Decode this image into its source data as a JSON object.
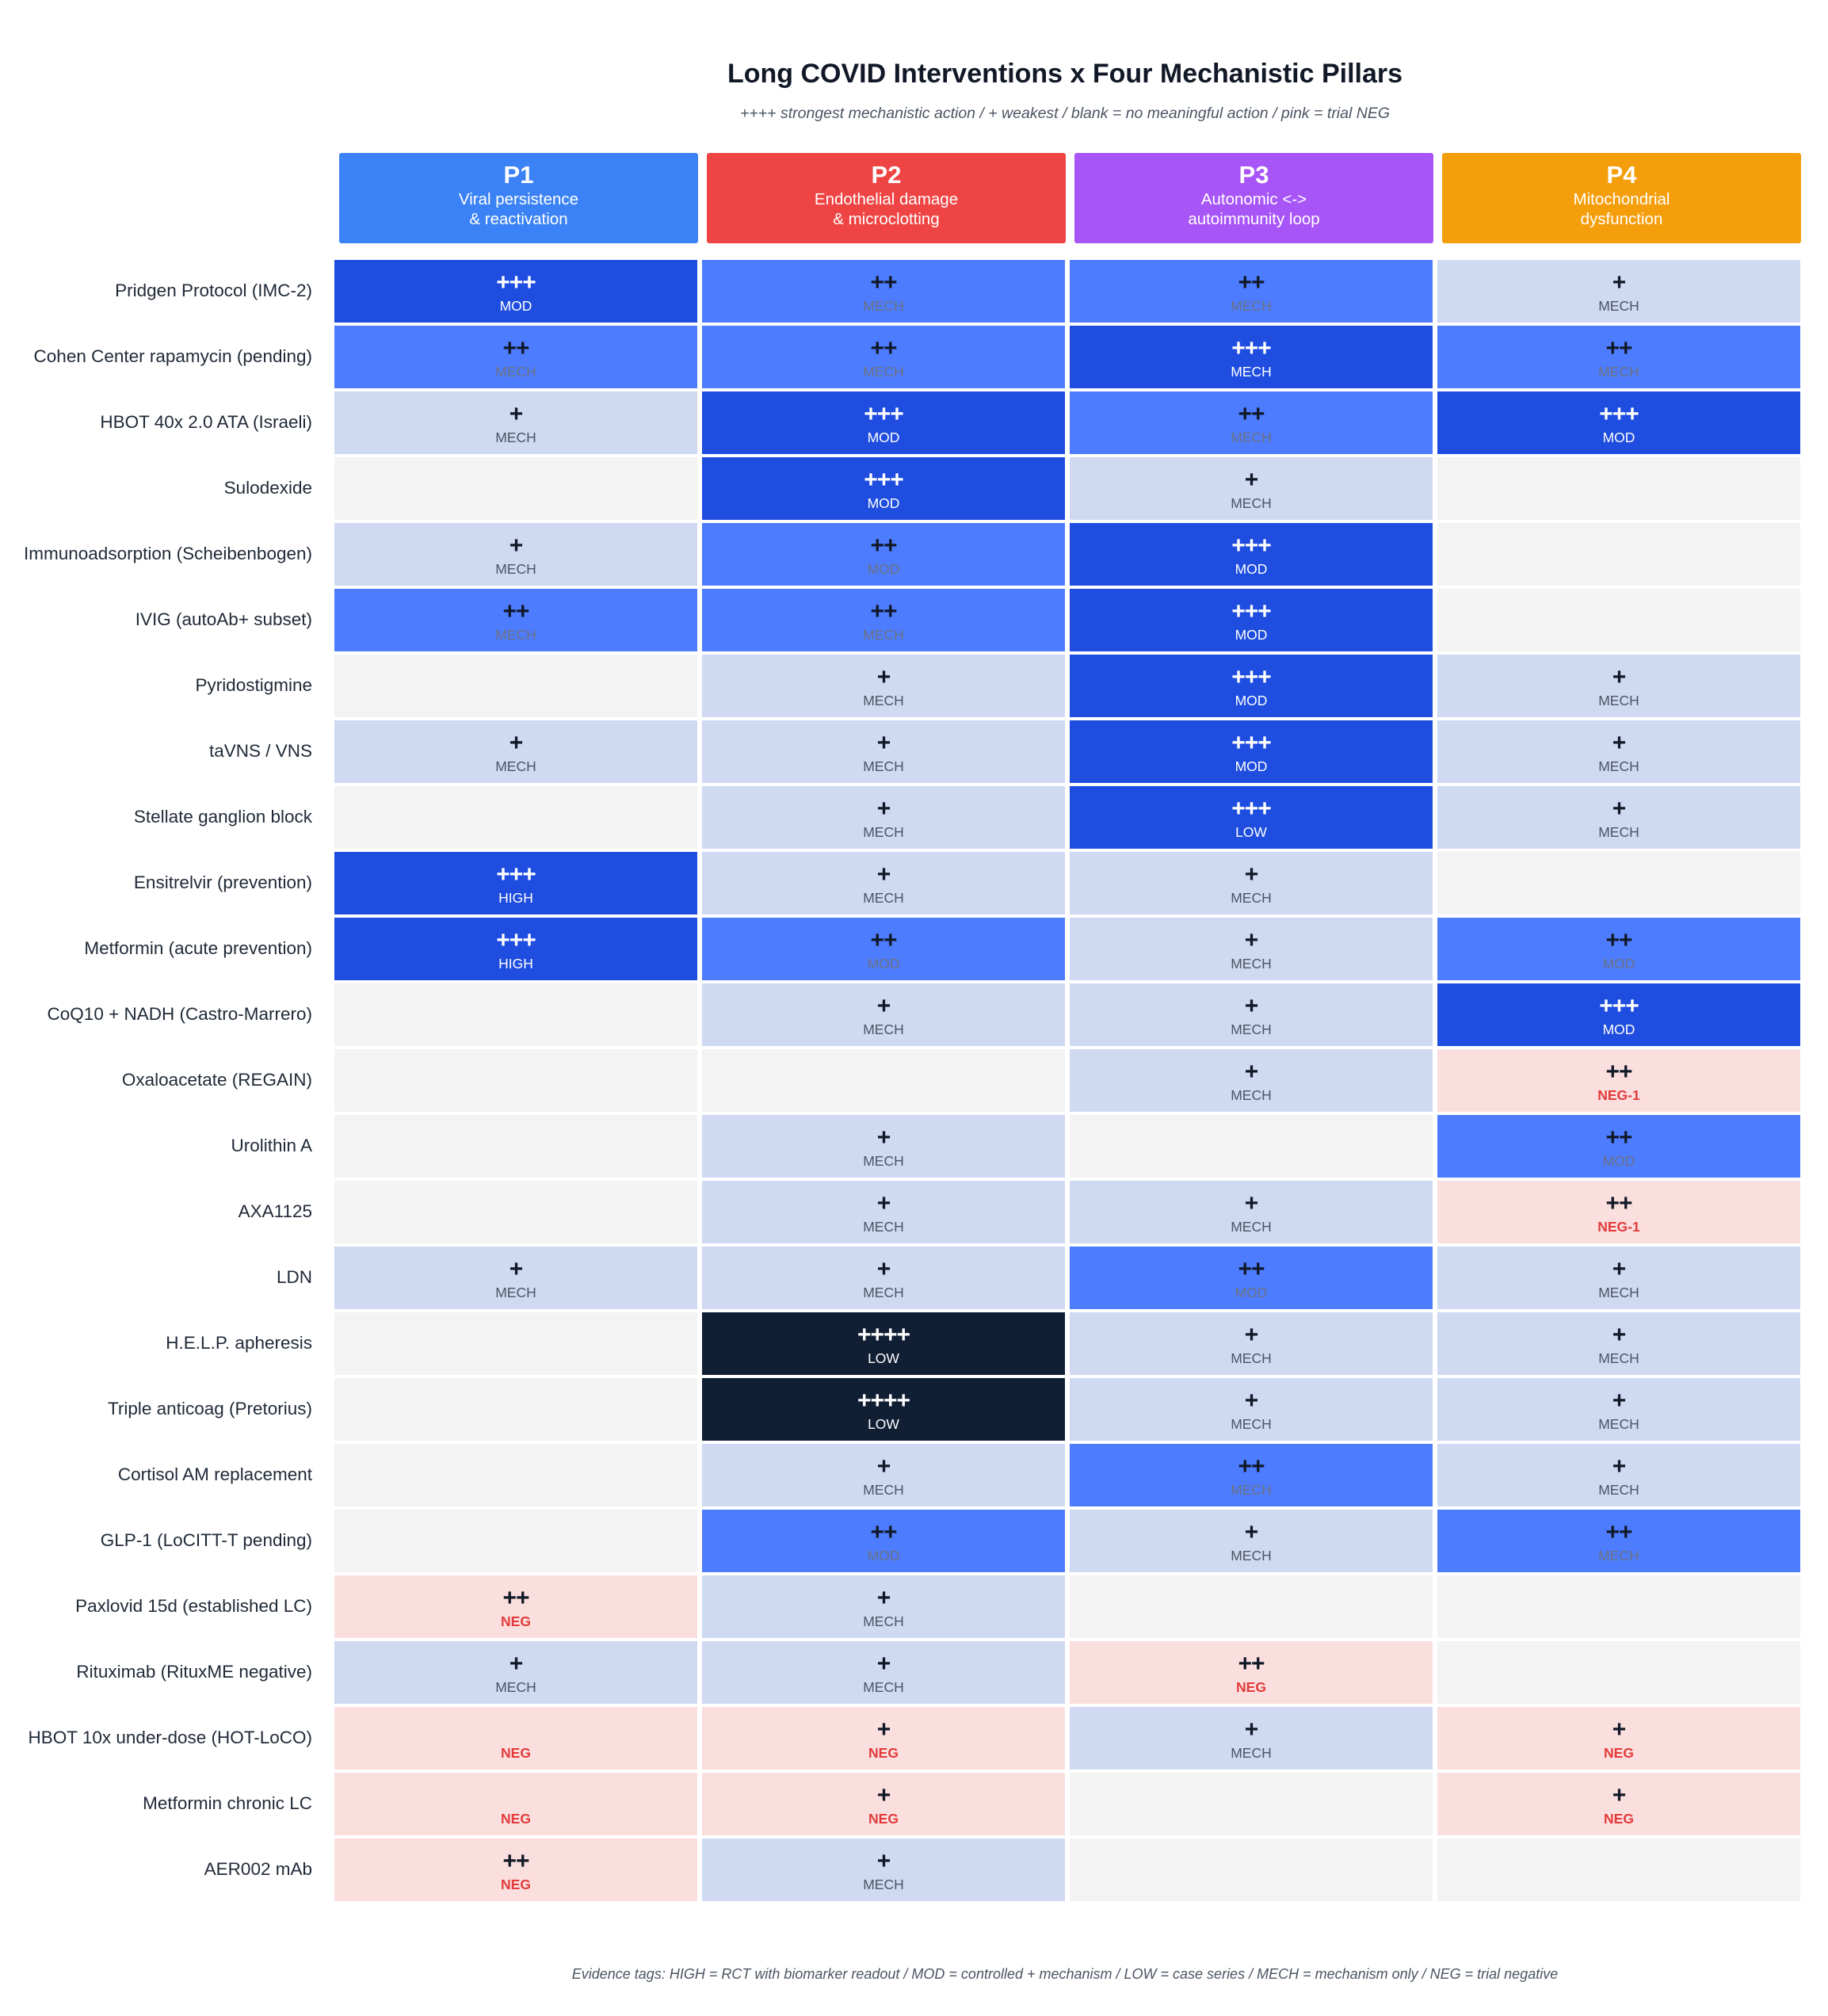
{
  "title": "Long COVID Interventions x Four Mechanistic Pillars",
  "subtitle": "++++ strongest mechanistic action   /   + weakest   /   blank = no meaningful action   /   pink = trial NEG",
  "footer": "Evidence tags:  HIGH = RCT with biomarker readout   /   MOD = controlled + mechanism   /   LOW = case series   /   MECH = mechanism only   /   NEG = trial negative",
  "colors": {
    "p1": "#3b82f6",
    "p2": "#ef4444",
    "p3": "#a855f7",
    "p4": "#f59e0b",
    "level_4": "#111f35",
    "level_3": "#1e4de0",
    "level_2": "#4d7cff",
    "level_1": "#cfd9f2",
    "blank": "#f3f3f3",
    "neg": "#fbdfdf",
    "neg_text": "#e23b3b"
  },
  "chart_data": {
    "type": "table",
    "title": "Long COVID Interventions x Four Mechanistic Pillars",
    "columns": [
      {
        "id": "P1",
        "label": "Viral persistence\n& reactivation"
      },
      {
        "id": "P2",
        "label": "Endothelial damage\n& microclotting"
      },
      {
        "id": "P3",
        "label": "Autonomic <->\nautoimmunity loop"
      },
      {
        "id": "P4",
        "label": "Mitochondrial\ndysfunction"
      }
    ],
    "rows": [
      {
        "name": "Pridgen Protocol (IMC-2)",
        "cells": [
          {
            "s": "+++",
            "t": "MOD"
          },
          {
            "s": "++",
            "t": "MECH"
          },
          {
            "s": "++",
            "t": "MECH"
          },
          {
            "s": "+",
            "t": "MECH"
          }
        ]
      },
      {
        "name": "Cohen Center rapamycin (pending)",
        "cells": [
          {
            "s": "++",
            "t": "MECH"
          },
          {
            "s": "++",
            "t": "MECH"
          },
          {
            "s": "+++",
            "t": "MECH"
          },
          {
            "s": "++",
            "t": "MECH"
          }
        ]
      },
      {
        "name": "HBOT 40x 2.0 ATA (Israeli)",
        "cells": [
          {
            "s": "+",
            "t": "MECH"
          },
          {
            "s": "+++",
            "t": "MOD"
          },
          {
            "s": "++",
            "t": "MECH"
          },
          {
            "s": "+++",
            "t": "MOD"
          }
        ]
      },
      {
        "name": "Sulodexide",
        "cells": [
          null,
          {
            "s": "+++",
            "t": "MOD"
          },
          {
            "s": "+",
            "t": "MECH"
          },
          null
        ]
      },
      {
        "name": "Immunoadsorption (Scheibenbogen)",
        "cells": [
          {
            "s": "+",
            "t": "MECH"
          },
          {
            "s": "++",
            "t": "MOD"
          },
          {
            "s": "+++",
            "t": "MOD"
          },
          null
        ]
      },
      {
        "name": "IVIG (autoAb+ subset)",
        "cells": [
          {
            "s": "++",
            "t": "MECH"
          },
          {
            "s": "++",
            "t": "MECH"
          },
          {
            "s": "+++",
            "t": "MOD"
          },
          null
        ]
      },
      {
        "name": "Pyridostigmine",
        "cells": [
          null,
          {
            "s": "+",
            "t": "MECH"
          },
          {
            "s": "+++",
            "t": "MOD"
          },
          {
            "s": "+",
            "t": "MECH"
          }
        ]
      },
      {
        "name": "taVNS / VNS",
        "cells": [
          {
            "s": "+",
            "t": "MECH"
          },
          {
            "s": "+",
            "t": "MECH"
          },
          {
            "s": "+++",
            "t": "MOD"
          },
          {
            "s": "+",
            "t": "MECH"
          }
        ]
      },
      {
        "name": "Stellate ganglion block",
        "cells": [
          null,
          {
            "s": "+",
            "t": "MECH"
          },
          {
            "s": "+++",
            "t": "LOW"
          },
          {
            "s": "+",
            "t": "MECH"
          }
        ]
      },
      {
        "name": "Ensitrelvir (prevention)",
        "cells": [
          {
            "s": "+++",
            "t": "HIGH"
          },
          {
            "s": "+",
            "t": "MECH"
          },
          {
            "s": "+",
            "t": "MECH"
          },
          null
        ]
      },
      {
        "name": "Metformin (acute prevention)",
        "cells": [
          {
            "s": "+++",
            "t": "HIGH"
          },
          {
            "s": "++",
            "t": "MOD"
          },
          {
            "s": "+",
            "t": "MECH"
          },
          {
            "s": "++",
            "t": "MOD"
          }
        ]
      },
      {
        "name": "CoQ10 + NADH (Castro-Marrero)",
        "cells": [
          null,
          {
            "s": "+",
            "t": "MECH"
          },
          {
            "s": "+",
            "t": "MECH"
          },
          {
            "s": "+++",
            "t": "MOD"
          }
        ]
      },
      {
        "name": "Oxaloacetate (REGAIN)",
        "cells": [
          null,
          null,
          {
            "s": "+",
            "t": "MECH"
          },
          {
            "s": "++",
            "t": "NEG-1",
            "neg": true
          }
        ]
      },
      {
        "name": "Urolithin A",
        "cells": [
          null,
          {
            "s": "+",
            "t": "MECH"
          },
          null,
          {
            "s": "++",
            "t": "MOD"
          }
        ]
      },
      {
        "name": "AXA1125",
        "cells": [
          null,
          {
            "s": "+",
            "t": "MECH"
          },
          {
            "s": "+",
            "t": "MECH"
          },
          {
            "s": "++",
            "t": "NEG-1",
            "neg": true
          }
        ]
      },
      {
        "name": "LDN",
        "cells": [
          {
            "s": "+",
            "t": "MECH"
          },
          {
            "s": "+",
            "t": "MECH"
          },
          {
            "s": "++",
            "t": "MOD"
          },
          {
            "s": "+",
            "t": "MECH"
          }
        ]
      },
      {
        "name": "H.E.L.P. apheresis",
        "cells": [
          null,
          {
            "s": "++++",
            "t": "LOW"
          },
          {
            "s": "+",
            "t": "MECH"
          },
          {
            "s": "+",
            "t": "MECH"
          }
        ]
      },
      {
        "name": "Triple anticoag (Pretorius)",
        "cells": [
          null,
          {
            "s": "++++",
            "t": "LOW"
          },
          {
            "s": "+",
            "t": "MECH"
          },
          {
            "s": "+",
            "t": "MECH"
          }
        ]
      },
      {
        "name": "Cortisol AM replacement",
        "cells": [
          null,
          {
            "s": "+",
            "t": "MECH"
          },
          {
            "s": "++",
            "t": "MECH"
          },
          {
            "s": "+",
            "t": "MECH"
          }
        ]
      },
      {
        "name": "GLP-1 (LoCITT-T pending)",
        "cells": [
          null,
          {
            "s": "++",
            "t": "MOD"
          },
          {
            "s": "+",
            "t": "MECH"
          },
          {
            "s": "++",
            "t": "MECH"
          }
        ]
      },
      {
        "name": "Paxlovid 15d (established LC)",
        "cells": [
          {
            "s": "++",
            "t": "NEG",
            "neg": true
          },
          {
            "s": "+",
            "t": "MECH"
          },
          null,
          null
        ]
      },
      {
        "name": "Rituximab (RituxME negative)",
        "cells": [
          {
            "s": "+",
            "t": "MECH"
          },
          {
            "s": "+",
            "t": "MECH"
          },
          {
            "s": "++",
            "t": "NEG",
            "neg": true
          },
          null
        ]
      },
      {
        "name": "HBOT 10x under-dose (HOT-LoCO)",
        "cells": [
          {
            "s": "",
            "t": "NEG",
            "neg": true
          },
          {
            "s": "+",
            "t": "NEG",
            "neg": true
          },
          {
            "s": "+",
            "t": "MECH"
          },
          {
            "s": "+",
            "t": "NEG",
            "neg": true
          }
        ]
      },
      {
        "name": "Metformin chronic LC",
        "cells": [
          {
            "s": "",
            "t": "NEG",
            "neg": true
          },
          {
            "s": "+",
            "t": "NEG",
            "neg": true
          },
          null,
          {
            "s": "+",
            "t": "NEG",
            "neg": true
          }
        ]
      },
      {
        "name": "AER002 mAb",
        "cells": [
          {
            "s": "++",
            "t": "NEG",
            "neg": true
          },
          {
            "s": "+",
            "t": "MECH"
          },
          null,
          null
        ]
      }
    ]
  }
}
